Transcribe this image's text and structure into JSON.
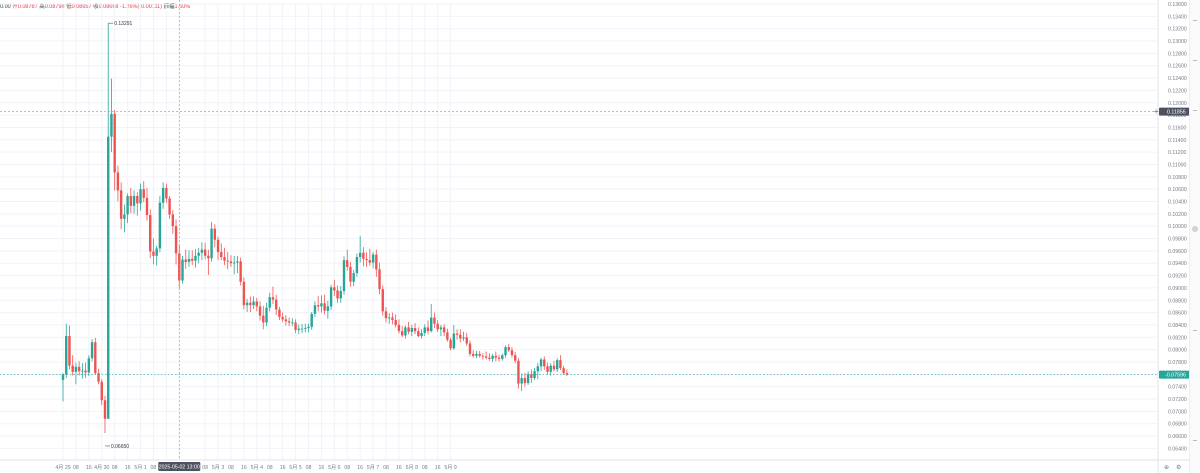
{
  "legend": {
    "prefix": "0.00",
    "open_label": "开",
    "open": "0.08787",
    "high_label": "高",
    "high": "0.08798",
    "low_label": "低",
    "low": "0.08657",
    "close_label": "收",
    "close": "0.08668",
    "change": "-1.26%(-0.00111)",
    "amp_label": "振幅",
    "amp": "1.60%"
  },
  "colors": {
    "up": "#26a69a",
    "down": "#ef5350",
    "grid": "#f0f3fa",
    "axis_text": "#787b86",
    "crosshair": "#9598a1",
    "crosshair_label_bg": "#4c525e",
    "last_price_bg": "#26a69a",
    "last_price_line": "#26a69a"
  },
  "chart_data": {
    "type": "candlestick",
    "y_axis": {
      "min": 0.064,
      "max": 0.136,
      "ticks": [
        "0.06400",
        "0.06600",
        "0.06800",
        "0.07000",
        "0.07200",
        "0.07400",
        "0.07600",
        "0.07800",
        "0.08000",
        "0.08200",
        "0.08400",
        "0.08600",
        "0.08800",
        "0.09000",
        "0.09200",
        "0.09400",
        "0.09600",
        "0.09800",
        "0.10000",
        "0.10200",
        "0.10400",
        "0.10600",
        "0.10800",
        "0.11000",
        "0.11200",
        "0.11400",
        "0.11600",
        "0.11800",
        "0.12000",
        "0.12200",
        "0.12400",
        "0.12600",
        "0.12800",
        "0.13000",
        "0.13200",
        "0.13400",
        "0.13600"
      ]
    },
    "x_axis": {
      "start": "4月 29 00:00",
      "interval_hours": 2,
      "labels": [
        {
          "bar": 0,
          "text": "4月 29"
        },
        {
          "bar": 4,
          "text": "08"
        },
        {
          "bar": 8,
          "text": "16"
        },
        {
          "bar": 12,
          "text": "4月 30"
        },
        {
          "bar": 16,
          "text": "08"
        },
        {
          "bar": 20,
          "text": "16"
        },
        {
          "bar": 24,
          "text": "5月 1"
        },
        {
          "bar": 28,
          "text": "08"
        },
        {
          "bar": 32,
          "text": "16"
        },
        {
          "bar": 36,
          "text": "5月 2"
        },
        {
          "bar": 44,
          "text": "08"
        },
        {
          "bar": 48,
          "text": "5月 3"
        },
        {
          "bar": 52,
          "text": "08"
        },
        {
          "bar": 56,
          "text": "16"
        },
        {
          "bar": 60,
          "text": "5月 4"
        },
        {
          "bar": 64,
          "text": "08"
        },
        {
          "bar": 68,
          "text": "16"
        },
        {
          "bar": 72,
          "text": "5月 5"
        },
        {
          "bar": 76,
          "text": "08"
        },
        {
          "bar": 80,
          "text": "16"
        },
        {
          "bar": 84,
          "text": "5月 6"
        },
        {
          "bar": 88,
          "text": "08"
        },
        {
          "bar": 92,
          "text": "16"
        },
        {
          "bar": 96,
          "text": "5月 7"
        },
        {
          "bar": 100,
          "text": "08"
        },
        {
          "bar": 104,
          "text": "16"
        },
        {
          "bar": 108,
          "text": "5月 8"
        },
        {
          "bar": 112,
          "text": "08"
        },
        {
          "bar": 116,
          "text": "16"
        },
        {
          "bar": 120,
          "text": "5月 9"
        }
      ]
    },
    "candles": [
      [
        0.0751,
        0.0762,
        0.0716,
        0.076
      ],
      [
        0.076,
        0.0842,
        0.0754,
        0.0822
      ],
      [
        0.0822,
        0.0839,
        0.0768,
        0.0774
      ],
      [
        0.0774,
        0.0791,
        0.0758,
        0.0764
      ],
      [
        0.0764,
        0.0779,
        0.0744,
        0.0772
      ],
      [
        0.0772,
        0.0781,
        0.0758,
        0.0765
      ],
      [
        0.0765,
        0.0778,
        0.0753,
        0.0766
      ],
      [
        0.0766,
        0.0779,
        0.0754,
        0.0763
      ],
      [
        0.0763,
        0.0791,
        0.0757,
        0.0786
      ],
      [
        0.0786,
        0.0817,
        0.0781,
        0.0812
      ],
      [
        0.0812,
        0.0819,
        0.0759,
        0.0762
      ],
      [
        0.0762,
        0.0769,
        0.0744,
        0.0748
      ],
      [
        0.0748,
        0.0752,
        0.071,
        0.0718
      ],
      [
        0.0718,
        0.0725,
        0.0665,
        0.0688
      ],
      [
        0.0688,
        0.1329,
        0.0688,
        0.1145
      ],
      [
        0.1145,
        0.1239,
        0.112,
        0.1182
      ],
      [
        0.1182,
        0.1188,
        0.1058,
        0.1087
      ],
      [
        0.1087,
        0.1098,
        0.104,
        0.1058
      ],
      [
        0.1058,
        0.1071,
        0.0995,
        0.1012
      ],
      [
        0.1012,
        0.1035,
        0.099,
        0.1019
      ],
      [
        0.1019,
        0.1053,
        0.1005,
        0.1049
      ],
      [
        0.1049,
        0.1062,
        0.1021,
        0.1033
      ],
      [
        0.1033,
        0.1058,
        0.102,
        0.1049
      ],
      [
        0.1049,
        0.1055,
        0.1017,
        0.1037
      ],
      [
        0.1037,
        0.1069,
        0.1025,
        0.106
      ],
      [
        0.106,
        0.1073,
        0.1039,
        0.1046
      ],
      [
        0.1046,
        0.1062,
        0.1009,
        0.1018
      ],
      [
        0.1018,
        0.1027,
        0.0948,
        0.0959
      ],
      [
        0.0959,
        0.098,
        0.0938,
        0.0952
      ],
      [
        0.0952,
        0.0968,
        0.0936,
        0.0964
      ],
      [
        0.0964,
        0.1049,
        0.0958,
        0.1038
      ],
      [
        0.1038,
        0.1071,
        0.1028,
        0.1062
      ],
      [
        0.1062,
        0.1069,
        0.1038,
        0.1045
      ],
      [
        0.1045,
        0.1049,
        0.1012,
        0.1019
      ],
      [
        0.1019,
        0.1026,
        0.0988,
        0.1
      ],
      [
        0.1,
        0.1011,
        0.0938,
        0.0956
      ],
      [
        0.0956,
        0.0969,
        0.0899,
        0.0912
      ],
      [
        0.0912,
        0.0952,
        0.0907,
        0.0946
      ],
      [
        0.0946,
        0.0962,
        0.0931,
        0.0942
      ],
      [
        0.0942,
        0.0961,
        0.0934,
        0.0947
      ],
      [
        0.0947,
        0.0961,
        0.0937,
        0.0944
      ],
      [
        0.0944,
        0.0963,
        0.0933,
        0.0952
      ],
      [
        0.0952,
        0.0965,
        0.094,
        0.0957
      ],
      [
        0.0957,
        0.0974,
        0.0945,
        0.0962
      ],
      [
        0.0962,
        0.0973,
        0.0946,
        0.0952
      ],
      [
        0.0952,
        0.0962,
        0.0921,
        0.0948
      ],
      [
        0.0948,
        0.1007,
        0.0943,
        0.0996
      ],
      [
        0.0996,
        0.1003,
        0.0966,
        0.0978
      ],
      [
        0.0978,
        0.0983,
        0.0945,
        0.0958
      ],
      [
        0.0958,
        0.0972,
        0.0945,
        0.095
      ],
      [
        0.095,
        0.0965,
        0.0937,
        0.0944
      ],
      [
        0.0944,
        0.0958,
        0.093,
        0.0943
      ],
      [
        0.0943,
        0.0953,
        0.0934,
        0.094
      ],
      [
        0.094,
        0.0952,
        0.0922,
        0.0941
      ],
      [
        0.0941,
        0.0952,
        0.0924,
        0.0943
      ],
      [
        0.0943,
        0.0949,
        0.0904,
        0.091
      ],
      [
        0.091,
        0.0917,
        0.0865,
        0.0872
      ],
      [
        0.0872,
        0.0882,
        0.0861,
        0.0876
      ],
      [
        0.0876,
        0.0886,
        0.0861,
        0.0872
      ],
      [
        0.0872,
        0.0886,
        0.0866,
        0.0878
      ],
      [
        0.0878,
        0.0884,
        0.0862,
        0.087
      ],
      [
        0.087,
        0.0878,
        0.0847,
        0.0855
      ],
      [
        0.0855,
        0.0871,
        0.0833,
        0.0844
      ],
      [
        0.0844,
        0.0876,
        0.0838,
        0.0868
      ],
      [
        0.0868,
        0.0892,
        0.0862,
        0.0885
      ],
      [
        0.0885,
        0.0902,
        0.0874,
        0.0881
      ],
      [
        0.0881,
        0.0889,
        0.0856,
        0.0865
      ],
      [
        0.0865,
        0.0869,
        0.0848,
        0.0853
      ],
      [
        0.0853,
        0.086,
        0.0845,
        0.0849
      ],
      [
        0.0849,
        0.0856,
        0.0839,
        0.0846
      ],
      [
        0.0846,
        0.0852,
        0.0838,
        0.0844
      ],
      [
        0.0844,
        0.0851,
        0.0838,
        0.0844
      ],
      [
        0.0844,
        0.0849,
        0.0827,
        0.0832
      ],
      [
        0.0832,
        0.0841,
        0.0825,
        0.0834
      ],
      [
        0.0834,
        0.0842,
        0.0827,
        0.0834
      ],
      [
        0.0834,
        0.0842,
        0.0828,
        0.0835
      ],
      [
        0.0835,
        0.0842,
        0.0828,
        0.0837
      ],
      [
        0.0837,
        0.0861,
        0.0832,
        0.0858
      ],
      [
        0.0858,
        0.0878,
        0.0853,
        0.0872
      ],
      [
        0.0872,
        0.0887,
        0.0862,
        0.087
      ],
      [
        0.087,
        0.0888,
        0.086,
        0.0875
      ],
      [
        0.0875,
        0.0889,
        0.0857,
        0.0863
      ],
      [
        0.0863,
        0.0879,
        0.085,
        0.087
      ],
      [
        0.087,
        0.0905,
        0.0864,
        0.0901
      ],
      [
        0.0901,
        0.0913,
        0.0887,
        0.0896
      ],
      [
        0.0896,
        0.0904,
        0.0876,
        0.0883
      ],
      [
        0.0883,
        0.0903,
        0.0876,
        0.0895
      ],
      [
        0.0895,
        0.0951,
        0.0889,
        0.0945
      ],
      [
        0.0945,
        0.0962,
        0.0928,
        0.0934
      ],
      [
        0.0934,
        0.0942,
        0.0902,
        0.091
      ],
      [
        0.091,
        0.0929,
        0.0903,
        0.0924
      ],
      [
        0.0924,
        0.0956,
        0.0918,
        0.095
      ],
      [
        0.095,
        0.0984,
        0.0941,
        0.0957
      ],
      [
        0.0957,
        0.0966,
        0.0935,
        0.0947
      ],
      [
        0.0947,
        0.0958,
        0.0934,
        0.0945
      ],
      [
        0.0945,
        0.0963,
        0.0936,
        0.0941
      ],
      [
        0.0941,
        0.0958,
        0.0932,
        0.0954
      ],
      [
        0.0954,
        0.0962,
        0.0918,
        0.093
      ],
      [
        0.093,
        0.0941,
        0.089,
        0.0898
      ],
      [
        0.0898,
        0.0904,
        0.0855,
        0.0862
      ],
      [
        0.0862,
        0.0869,
        0.0844,
        0.0851
      ],
      [
        0.0851,
        0.0859,
        0.0842,
        0.0852
      ],
      [
        0.0852,
        0.086,
        0.0841,
        0.0848
      ],
      [
        0.0848,
        0.0857,
        0.0836,
        0.084
      ],
      [
        0.084,
        0.0849,
        0.0826,
        0.083
      ],
      [
        0.083,
        0.0838,
        0.082,
        0.0823
      ],
      [
        0.0823,
        0.0839,
        0.0818,
        0.0836
      ],
      [
        0.0836,
        0.0845,
        0.0825,
        0.0829
      ],
      [
        0.0829,
        0.084,
        0.0822,
        0.0835
      ],
      [
        0.0835,
        0.0843,
        0.0825,
        0.083
      ],
      [
        0.083,
        0.0836,
        0.082,
        0.0822
      ],
      [
        0.0822,
        0.0833,
        0.0818,
        0.0827
      ],
      [
        0.0827,
        0.0841,
        0.0822,
        0.0836
      ],
      [
        0.0836,
        0.0847,
        0.0825,
        0.083
      ],
      [
        0.083,
        0.0874,
        0.0828,
        0.0852
      ],
      [
        0.0852,
        0.086,
        0.0835,
        0.0842
      ],
      [
        0.0842,
        0.0848,
        0.0829,
        0.0833
      ],
      [
        0.0833,
        0.084,
        0.0822,
        0.0836
      ],
      [
        0.0836,
        0.0841,
        0.0822,
        0.0828
      ],
      [
        0.0828,
        0.0834,
        0.0813,
        0.0816
      ],
      [
        0.0816,
        0.0819,
        0.0799,
        0.0802
      ],
      [
        0.0802,
        0.084,
        0.08,
        0.0826
      ],
      [
        0.0826,
        0.0833,
        0.0816,
        0.0824
      ],
      [
        0.0824,
        0.0833,
        0.0812,
        0.0818
      ],
      [
        0.0818,
        0.0829,
        0.0814,
        0.082
      ],
      [
        0.082,
        0.0827,
        0.0806,
        0.081
      ],
      [
        0.081,
        0.0815,
        0.0789,
        0.0793
      ],
      [
        0.0793,
        0.0799,
        0.0787,
        0.079
      ],
      [
        0.079,
        0.0798,
        0.0786,
        0.0793
      ],
      [
        0.0793,
        0.0798,
        0.0787,
        0.079
      ],
      [
        0.079,
        0.0794,
        0.0784,
        0.0789
      ],
      [
        0.0789,
        0.0797,
        0.0784,
        0.0787
      ],
      [
        0.0787,
        0.0794,
        0.0782,
        0.0785
      ],
      [
        0.0785,
        0.0793,
        0.078,
        0.079
      ],
      [
        0.079,
        0.0797,
        0.0781,
        0.0787
      ],
      [
        0.0787,
        0.0792,
        0.0781,
        0.0785
      ],
      [
        0.0785,
        0.0794,
        0.0782,
        0.0791
      ],
      [
        0.0791,
        0.0807,
        0.0787,
        0.0804
      ],
      [
        0.0804,
        0.0809,
        0.0796,
        0.0799
      ],
      [
        0.0799,
        0.0804,
        0.0787,
        0.0791
      ],
      [
        0.0791,
        0.0796,
        0.0778,
        0.0782
      ],
      [
        0.0782,
        0.0786,
        0.0737,
        0.0745
      ],
      [
        0.0745,
        0.0761,
        0.0733,
        0.0754
      ],
      [
        0.0754,
        0.0762,
        0.074,
        0.0746
      ],
      [
        0.0746,
        0.0765,
        0.0743,
        0.076
      ],
      [
        0.076,
        0.0768,
        0.0746,
        0.0754
      ],
      [
        0.0754,
        0.077,
        0.0751,
        0.0765
      ],
      [
        0.0765,
        0.0778,
        0.0752,
        0.0773
      ],
      [
        0.0773,
        0.0787,
        0.0765,
        0.0784
      ],
      [
        0.0784,
        0.0789,
        0.0767,
        0.0773
      ],
      [
        0.0773,
        0.0779,
        0.076,
        0.0764
      ],
      [
        0.0764,
        0.0778,
        0.0758,
        0.0774
      ],
      [
        0.0774,
        0.0782,
        0.0765,
        0.0768
      ],
      [
        0.0768,
        0.0786,
        0.0764,
        0.0783
      ],
      [
        0.0783,
        0.0791,
        0.0767,
        0.077
      ],
      [
        0.077,
        0.0774,
        0.0759,
        0.0762
      ],
      [
        0.0762,
        0.0768,
        0.0757,
        0.076
      ]
    ],
    "high_marker": {
      "bar": 14,
      "label": "0.13291"
    },
    "low_marker": {
      "bar": 13,
      "label": "0.06650"
    },
    "crosshair": {
      "price": 0.11856,
      "price_label": "0.11856",
      "bar": 36,
      "time_label": "2025-05-02 13:00"
    },
    "last_price": {
      "price": 0.07596,
      "label": "0.07596"
    }
  }
}
